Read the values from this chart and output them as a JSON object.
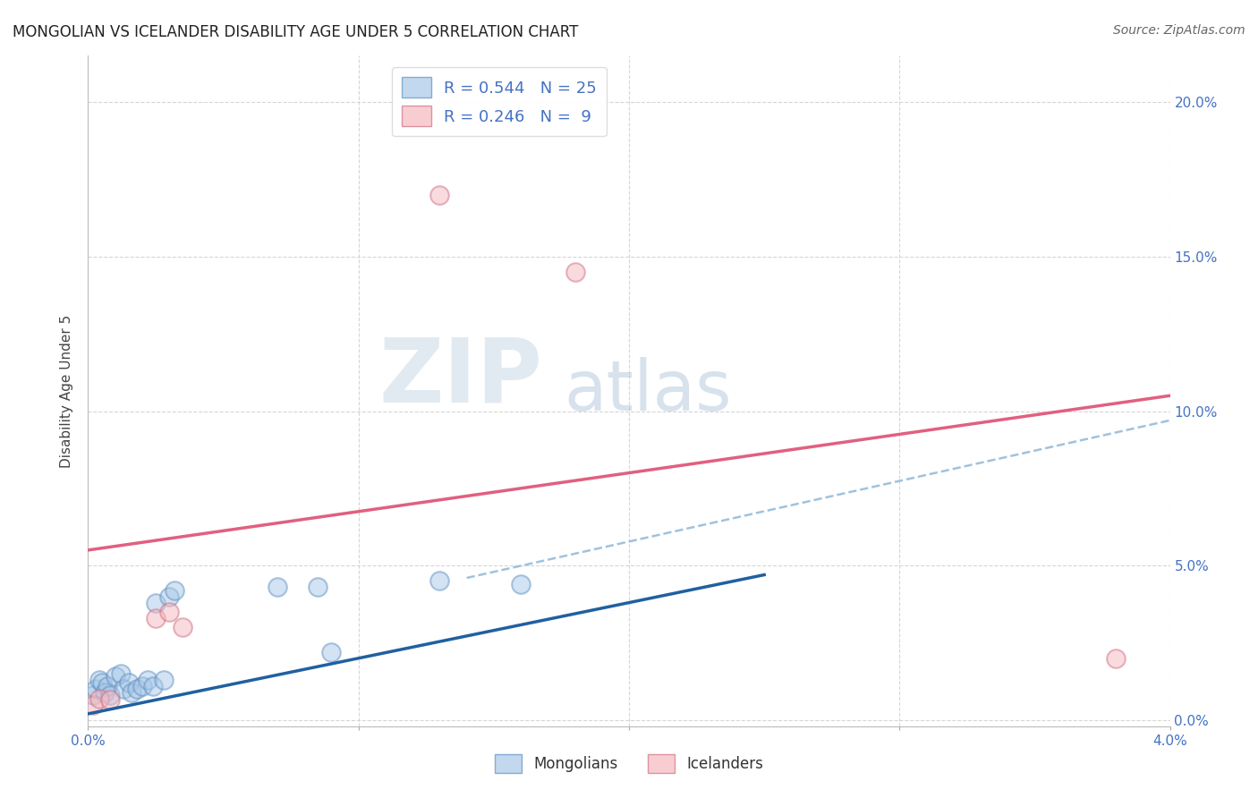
{
  "title": "MONGOLIAN VS ICELANDER DISABILITY AGE UNDER 5 CORRELATION CHART",
  "source": "Source: ZipAtlas.com",
  "ylabel": "Disability Age Under 5",
  "r_mongolian": 0.544,
  "n_mongolian": 25,
  "r_icelander": 0.246,
  "n_icelander": 9,
  "mongolian_color": "#a8c8e8",
  "icelander_color": "#f4b8c0",
  "mongolian_line_color": "#2060a0",
  "icelander_line_color": "#e06080",
  "mongolian_dashed_color": "#90b8d8",
  "background_color": "#ffffff",
  "grid_color": "#cccccc",
  "xlim": [
    0.0,
    0.04
  ],
  "ylim": [
    -0.002,
    0.215
  ],
  "yticks": [
    0.0,
    0.05,
    0.1,
    0.15,
    0.2
  ],
  "ytick_labels_right": [
    "0.0%",
    "5.0%",
    "10.0%",
    "15.0%",
    "20.0%"
  ],
  "xticks": [
    0.0,
    0.01,
    0.02,
    0.03,
    0.04
  ],
  "xtick_labels": [
    "0.0%",
    "",
    "",
    "",
    "4.0%"
  ],
  "mongolian_x": [
    0.0002,
    0.0003,
    0.0004,
    0.0005,
    0.0006,
    0.0007,
    0.0008,
    0.001,
    0.0012,
    0.0013,
    0.0015,
    0.0016,
    0.0018,
    0.002,
    0.0022,
    0.0024,
    0.0025,
    0.0028,
    0.003,
    0.0032,
    0.007,
    0.0085,
    0.009,
    0.013,
    0.016
  ],
  "mongolian_y": [
    0.008,
    0.01,
    0.013,
    0.012,
    0.009,
    0.011,
    0.008,
    0.014,
    0.015,
    0.01,
    0.012,
    0.009,
    0.01,
    0.011,
    0.013,
    0.011,
    0.038,
    0.013,
    0.04,
    0.042,
    0.043,
    0.043,
    0.022,
    0.045,
    0.044
  ],
  "icelander_x": [
    0.0002,
    0.0004,
    0.0008,
    0.0025,
    0.003,
    0.0035,
    0.013,
    0.018,
    0.038
  ],
  "icelander_y": [
    0.005,
    0.007,
    0.0065,
    0.033,
    0.035,
    0.03,
    0.17,
    0.145,
    0.02
  ],
  "mongolian_trend_x": [
    0.0,
    0.025
  ],
  "mongolian_trend_y": [
    0.002,
    0.047
  ],
  "icelander_trend_x": [
    0.0,
    0.04
  ],
  "icelander_trend_y": [
    0.055,
    0.105
  ],
  "mongolian_dashed_trend_x": [
    0.014,
    0.04
  ],
  "mongolian_dashed_trend_y": [
    0.046,
    0.097
  ],
  "watermark_zip": "ZIP",
  "watermark_atlas": "atlas",
  "legend_mongolian": "Mongolians",
  "legend_icelander": "Icelanders"
}
